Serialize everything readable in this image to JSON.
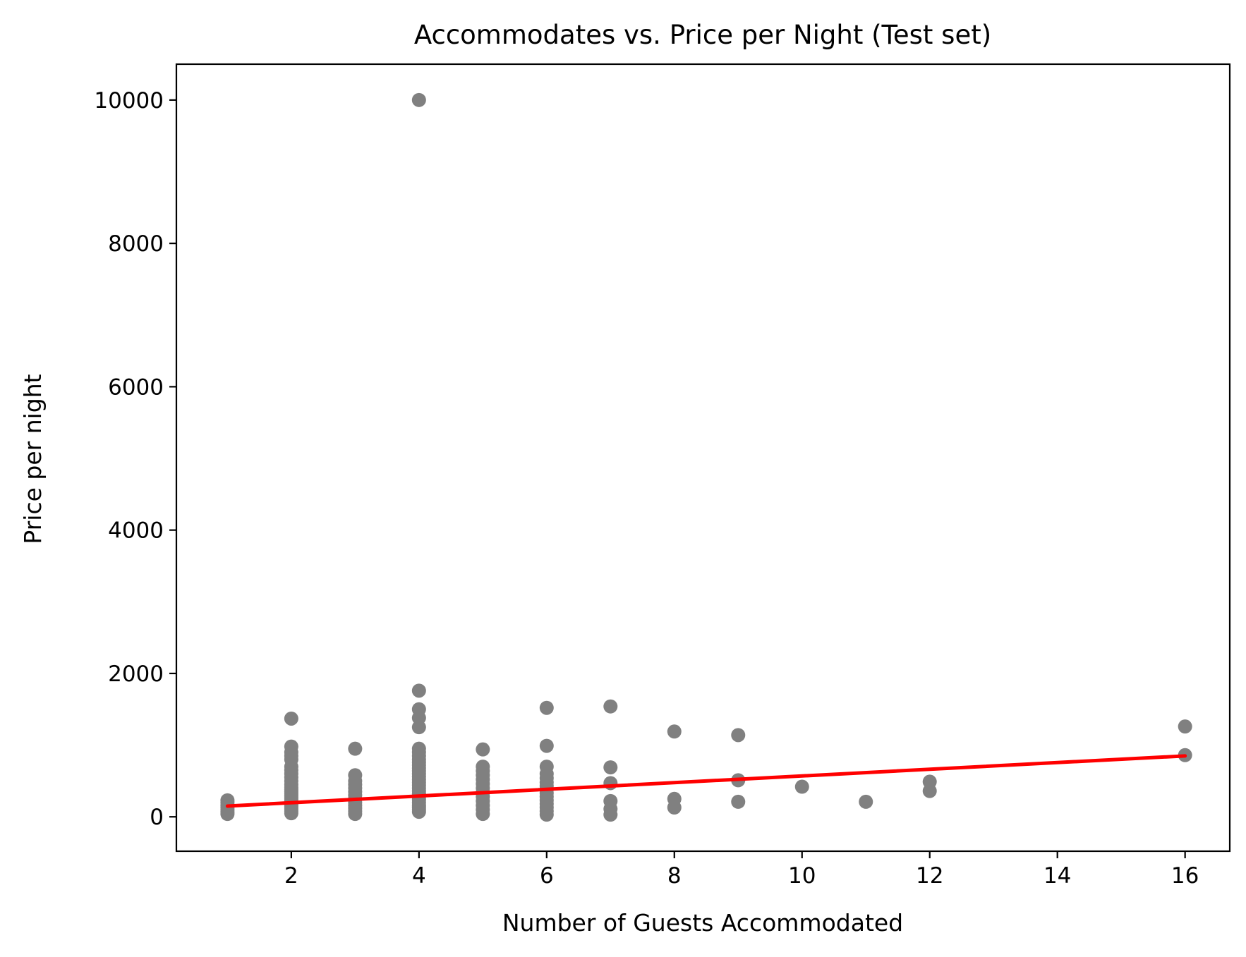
{
  "chart_data": {
    "type": "scatter",
    "title": "Accommodates vs. Price per Night (Test set)",
    "xlabel": "Number of Guests Accommodated",
    "ylabel": "Price per night",
    "xlim": [
      0.2,
      16.7
    ],
    "ylim": [
      -480,
      10500
    ],
    "xticks": [
      2,
      4,
      6,
      8,
      10,
      12,
      14,
      16
    ],
    "yticks": [
      0,
      2000,
      4000,
      6000,
      8000,
      10000
    ],
    "grid": false,
    "legend": "none",
    "colors": {
      "points": "#808080",
      "regression_line": "#ff0000",
      "axes": "#000000",
      "background": "#ffffff"
    },
    "series": [
      {
        "type": "scatter",
        "points": [
          [
            1,
            40
          ],
          [
            1,
            70
          ],
          [
            1,
            100
          ],
          [
            1,
            130
          ],
          [
            1,
            160
          ],
          [
            1,
            200
          ],
          [
            1,
            230
          ],
          [
            2,
            50
          ],
          [
            2,
            80
          ],
          [
            2,
            110
          ],
          [
            2,
            140
          ],
          [
            2,
            170
          ],
          [
            2,
            200
          ],
          [
            2,
            230
          ],
          [
            2,
            260
          ],
          [
            2,
            290
          ],
          [
            2,
            320
          ],
          [
            2,
            350
          ],
          [
            2,
            380
          ],
          [
            2,
            410
          ],
          [
            2,
            450
          ],
          [
            2,
            500
          ],
          [
            2,
            550
          ],
          [
            2,
            600
          ],
          [
            2,
            650
          ],
          [
            2,
            700
          ],
          [
            2,
            800
          ],
          [
            2,
            850
          ],
          [
            2,
            900
          ],
          [
            2,
            980
          ],
          [
            2,
            1370
          ],
          [
            3,
            40
          ],
          [
            3,
            80
          ],
          [
            3,
            120
          ],
          [
            3,
            160
          ],
          [
            3,
            200
          ],
          [
            3,
            250
          ],
          [
            3,
            300
          ],
          [
            3,
            350
          ],
          [
            3,
            400
          ],
          [
            3,
            450
          ],
          [
            3,
            500
          ],
          [
            3,
            580
          ],
          [
            3,
            950
          ],
          [
            4,
            70
          ],
          [
            4,
            100
          ],
          [
            4,
            130
          ],
          [
            4,
            160
          ],
          [
            4,
            200
          ],
          [
            4,
            240
          ],
          [
            4,
            280
          ],
          [
            4,
            320
          ],
          [
            4,
            360
          ],
          [
            4,
            400
          ],
          [
            4,
            440
          ],
          [
            4,
            480
          ],
          [
            4,
            520
          ],
          [
            4,
            560
          ],
          [
            4,
            600
          ],
          [
            4,
            640
          ],
          [
            4,
            680
          ],
          [
            4,
            720
          ],
          [
            4,
            760
          ],
          [
            4,
            800
          ],
          [
            4,
            850
          ],
          [
            4,
            900
          ],
          [
            4,
            950
          ],
          [
            4,
            1250
          ],
          [
            4,
            1380
          ],
          [
            4,
            1500
          ],
          [
            4,
            1760
          ],
          [
            4,
            10000
          ],
          [
            5,
            40
          ],
          [
            5,
            100
          ],
          [
            5,
            160
          ],
          [
            5,
            220
          ],
          [
            5,
            280
          ],
          [
            5,
            340
          ],
          [
            5,
            400
          ],
          [
            5,
            460
          ],
          [
            5,
            520
          ],
          [
            5,
            580
          ],
          [
            5,
            640
          ],
          [
            5,
            700
          ],
          [
            5,
            940
          ],
          [
            6,
            30
          ],
          [
            6,
            80
          ],
          [
            6,
            130
          ],
          [
            6,
            180
          ],
          [
            6,
            230
          ],
          [
            6,
            280
          ],
          [
            6,
            330
          ],
          [
            6,
            380
          ],
          [
            6,
            430
          ],
          [
            6,
            480
          ],
          [
            6,
            540
          ],
          [
            6,
            600
          ],
          [
            6,
            700
          ],
          [
            6,
            990
          ],
          [
            6,
            1520
          ],
          [
            7,
            30
          ],
          [
            7,
            110
          ],
          [
            7,
            220
          ],
          [
            7,
            470
          ],
          [
            7,
            690
          ],
          [
            7,
            1540
          ],
          [
            8,
            130
          ],
          [
            8,
            250
          ],
          [
            8,
            1190
          ],
          [
            9,
            210
          ],
          [
            9,
            510
          ],
          [
            9,
            1140
          ],
          [
            10,
            420
          ],
          [
            11,
            210
          ],
          [
            12,
            360
          ],
          [
            12,
            490
          ],
          [
            16,
            860
          ],
          [
            16,
            1260
          ]
        ]
      },
      {
        "type": "line",
        "points": [
          [
            1,
            150
          ],
          [
            16,
            850
          ]
        ]
      }
    ]
  }
}
